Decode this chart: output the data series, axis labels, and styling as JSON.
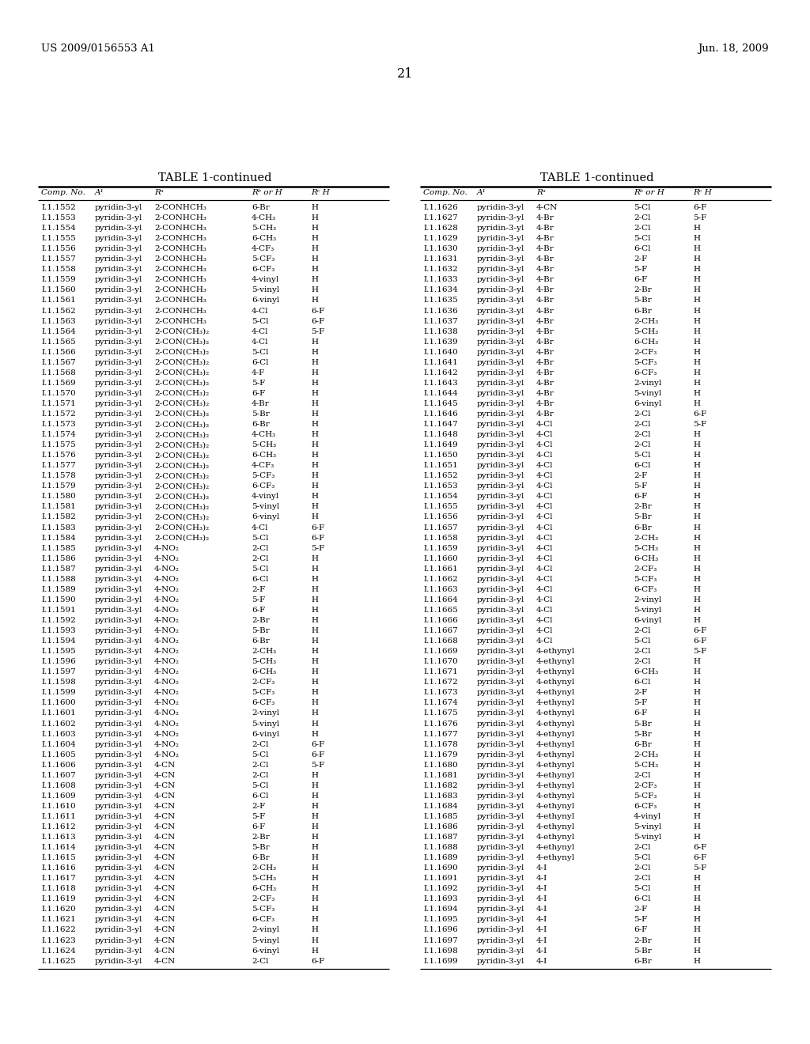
{
  "header_left": "US 2009/0156553 A1",
  "header_right": "Jun. 18, 2009",
  "page_number": "21",
  "table_title": "TABLE 1-continued",
  "col_headers": [
    "Comp. No.",
    "A¹",
    "Rᵃ",
    "Rᵇ or H",
    "Rᶜ H"
  ],
  "left_rows": [
    [
      "I.1.1552",
      "pyridin-3-yl",
      "2-CONHCH₃",
      "6-Br",
      "H"
    ],
    [
      "I.1.1553",
      "pyridin-3-yl",
      "2-CONHCH₃",
      "4-CH₃",
      "H"
    ],
    [
      "I.1.1554",
      "pyridin-3-yl",
      "2-CONHCH₃",
      "5-CH₃",
      "H"
    ],
    [
      "I.1.1555",
      "pyridin-3-yl",
      "2-CONHCH₃",
      "6-CH₃",
      "H"
    ],
    [
      "I.1.1556",
      "pyridin-3-yl",
      "2-CONHCH₃",
      "4-CF₃",
      "H"
    ],
    [
      "I.1.1557",
      "pyridin-3-yl",
      "2-CONHCH₃",
      "5-CF₃",
      "H"
    ],
    [
      "I.1.1558",
      "pyridin-3-yl",
      "2-CONHCH₃",
      "6-CF₃",
      "H"
    ],
    [
      "I.1.1559",
      "pyridin-3-yl",
      "2-CONHCH₃",
      "4-vinyl",
      "H"
    ],
    [
      "I.1.1560",
      "pyridin-3-yl",
      "2-CONHCH₃",
      "5-vinyl",
      "H"
    ],
    [
      "I.1.1561",
      "pyridin-3-yl",
      "2-CONHCH₃",
      "6-vinyl",
      "H"
    ],
    [
      "I.1.1562",
      "pyridin-3-yl",
      "2-CONHCH₃",
      "4-Cl",
      "6-F"
    ],
    [
      "I.1.1563",
      "pyridin-3-yl",
      "2-CONHCH₃",
      "5-Cl",
      "6-F"
    ],
    [
      "I.1.1564",
      "pyridin-3-yl",
      "2-CON(CH₃)₂",
      "4-Cl",
      "5-F"
    ],
    [
      "I.1.1565",
      "pyridin-3-yl",
      "2-CON(CH₃)₂",
      "4-Cl",
      "H"
    ],
    [
      "I.1.1566",
      "pyridin-3-yl",
      "2-CON(CH₃)₂",
      "5-Cl",
      "H"
    ],
    [
      "I.1.1567",
      "pyridin-3-yl",
      "2-CON(CH₃)₂",
      "6-Cl",
      "H"
    ],
    [
      "I.1.1568",
      "pyridin-3-yl",
      "2-CON(CH₃)₂",
      "4-F",
      "H"
    ],
    [
      "I.1.1569",
      "pyridin-3-yl",
      "2-CON(CH₃)₂",
      "5-F",
      "H"
    ],
    [
      "I.1.1570",
      "pyridin-3-yl",
      "2-CON(CH₃)₂",
      "6-F",
      "H"
    ],
    [
      "I.1.1571",
      "pyridin-3-yl",
      "2-CON(CH₃)₂",
      "4-Br",
      "H"
    ],
    [
      "I.1.1572",
      "pyridin-3-yl",
      "2-CON(CH₃)₂",
      "5-Br",
      "H"
    ],
    [
      "I.1.1573",
      "pyridin-3-yl",
      "2-CON(CH₃)₂",
      "6-Br",
      "H"
    ],
    [
      "I.1.1574",
      "pyridin-3-yl",
      "2-CON(CH₃)₂",
      "4-CH₃",
      "H"
    ],
    [
      "I.1.1575",
      "pyridin-3-yl",
      "2-CON(CH₃)₂",
      "5-CH₃",
      "H"
    ],
    [
      "I.1.1576",
      "pyridin-3-yl",
      "2-CON(CH₃)₂",
      "6-CH₃",
      "H"
    ],
    [
      "I.1.1577",
      "pyridin-3-yl",
      "2-CON(CH₃)₂",
      "4-CF₃",
      "H"
    ],
    [
      "I.1.1578",
      "pyridin-3-yl",
      "2-CON(CH₃)₂",
      "5-CF₃",
      "H"
    ],
    [
      "I.1.1579",
      "pyridin-3-yl",
      "2-CON(CH₃)₂",
      "6-CF₃",
      "H"
    ],
    [
      "I.1.1580",
      "pyridin-3-yl",
      "2-CON(CH₃)₂",
      "4-vinyl",
      "H"
    ],
    [
      "I.1.1581",
      "pyridin-3-yl",
      "2-CON(CH₃)₂",
      "5-vinyl",
      "H"
    ],
    [
      "I.1.1582",
      "pyridin-3-yl",
      "2-CON(CH₃)₂",
      "6-vinyl",
      "H"
    ],
    [
      "I.1.1583",
      "pyridin-3-yl",
      "2-CON(CH₃)₂",
      "4-Cl",
      "6-F"
    ],
    [
      "I.1.1584",
      "pyridin-3-yl",
      "2-CON(CH₃)₂",
      "5-Cl",
      "6-F"
    ],
    [
      "I.1.1585",
      "pyridin-3-yl",
      "4-NO₂",
      "2-Cl",
      "5-F"
    ],
    [
      "I.1.1586",
      "pyridin-3-yl",
      "4-NO₂",
      "2-Cl",
      "H"
    ],
    [
      "I.1.1587",
      "pyridin-3-yl",
      "4-NO₂",
      "5-Cl",
      "H"
    ],
    [
      "I.1.1588",
      "pyridin-3-yl",
      "4-NO₂",
      "6-Cl",
      "H"
    ],
    [
      "I.1.1589",
      "pyridin-3-yl",
      "4-NO₂",
      "2-F",
      "H"
    ],
    [
      "I.1.1590",
      "pyridin-3-yl",
      "4-NO₂",
      "5-F",
      "H"
    ],
    [
      "I.1.1591",
      "pyridin-3-yl",
      "4-NO₂",
      "6-F",
      "H"
    ],
    [
      "I.1.1592",
      "pyridin-3-yl",
      "4-NO₂",
      "2-Br",
      "H"
    ],
    [
      "I.1.1593",
      "pyridin-3-yl",
      "4-NO₂",
      "5-Br",
      "H"
    ],
    [
      "I.1.1594",
      "pyridin-3-yl",
      "4-NO₂",
      "6-Br",
      "H"
    ],
    [
      "I.1.1595",
      "pyridin-3-yl",
      "4-NO₂",
      "2-CH₃",
      "H"
    ],
    [
      "I.1.1596",
      "pyridin-3-yl",
      "4-NO₂",
      "5-CH₃",
      "H"
    ],
    [
      "I.1.1597",
      "pyridin-3-yl",
      "4-NO₂",
      "6-CH₃",
      "H"
    ],
    [
      "I.1.1598",
      "pyridin-3-yl",
      "4-NO₂",
      "2-CF₃",
      "H"
    ],
    [
      "I.1.1599",
      "pyridin-3-yl",
      "4-NO₂",
      "5-CF₃",
      "H"
    ],
    [
      "I.1.1600",
      "pyridin-3-yl",
      "4-NO₂",
      "6-CF₃",
      "H"
    ],
    [
      "I.1.1601",
      "pyridin-3-yl",
      "4-NO₂",
      "2-vinyl",
      "H"
    ],
    [
      "I.1.1602",
      "pyridin-3-yl",
      "4-NO₂",
      "5-vinyl",
      "H"
    ],
    [
      "I.1.1603",
      "pyridin-3-yl",
      "4-NO₂",
      "6-vinyl",
      "H"
    ],
    [
      "I.1.1604",
      "pyridin-3-yl",
      "4-NO₂",
      "2-Cl",
      "6-F"
    ],
    [
      "I.1.1605",
      "pyridin-3-yl",
      "4-NO₂",
      "5-Cl",
      "6-F"
    ],
    [
      "I.1.1606",
      "pyridin-3-yl",
      "4-CN",
      "2-Cl",
      "5-F"
    ],
    [
      "I.1.1607",
      "pyridin-3-yl",
      "4-CN",
      "2-Cl",
      "H"
    ],
    [
      "I.1.1608",
      "pyridin-3-yl",
      "4-CN",
      "5-Cl",
      "H"
    ],
    [
      "I.1.1609",
      "pyridin-3-yl",
      "4-CN",
      "6-Cl",
      "H"
    ],
    [
      "I.1.1610",
      "pyridin-3-yl",
      "4-CN",
      "2-F",
      "H"
    ],
    [
      "I.1.1611",
      "pyridin-3-yl",
      "4-CN",
      "5-F",
      "H"
    ],
    [
      "I.1.1612",
      "pyridin-3-yl",
      "4-CN",
      "6-F",
      "H"
    ],
    [
      "I.1.1613",
      "pyridin-3-yl",
      "4-CN",
      "2-Br",
      "H"
    ],
    [
      "I.1.1614",
      "pyridin-3-yl",
      "4-CN",
      "5-Br",
      "H"
    ],
    [
      "I.1.1615",
      "pyridin-3-yl",
      "4-CN",
      "6-Br",
      "H"
    ],
    [
      "I.1.1616",
      "pyridin-3-yl",
      "4-CN",
      "2-CH₃",
      "H"
    ],
    [
      "I.1.1617",
      "pyridin-3-yl",
      "4-CN",
      "5-CH₃",
      "H"
    ],
    [
      "I.1.1618",
      "pyridin-3-yl",
      "4-CN",
      "6-CH₃",
      "H"
    ],
    [
      "I.1.1619",
      "pyridin-3-yl",
      "4-CN",
      "2-CF₃",
      "H"
    ],
    [
      "I.1.1620",
      "pyridin-3-yl",
      "4-CN",
      "5-CF₃",
      "H"
    ],
    [
      "I.1.1621",
      "pyridin-3-yl",
      "4-CN",
      "6-CF₃",
      "H"
    ],
    [
      "I.1.1622",
      "pyridin-3-yl",
      "4-CN",
      "2-vinyl",
      "H"
    ],
    [
      "I.1.1623",
      "pyridin-3-yl",
      "4-CN",
      "5-vinyl",
      "H"
    ],
    [
      "I.1.1624",
      "pyridin-3-yl",
      "4-CN",
      "6-vinyl",
      "H"
    ],
    [
      "I.1.1625",
      "pyridin-3-yl",
      "4-CN",
      "2-Cl",
      "6-F"
    ]
  ],
  "right_rows": [
    [
      "I.1.1626",
      "pyridin-3-yl",
      "4-CN",
      "5-Cl",
      "6-F"
    ],
    [
      "I.1.1627",
      "pyridin-3-yl",
      "4-Br",
      "2-Cl",
      "5-F"
    ],
    [
      "I.1.1628",
      "pyridin-3-yl",
      "4-Br",
      "2-Cl",
      "H"
    ],
    [
      "I.1.1629",
      "pyridin-3-yl",
      "4-Br",
      "5-Cl",
      "H"
    ],
    [
      "I.1.1630",
      "pyridin-3-yl",
      "4-Br",
      "6-Cl",
      "H"
    ],
    [
      "I.1.1631",
      "pyridin-3-yl",
      "4-Br",
      "2-F",
      "H"
    ],
    [
      "I.1.1632",
      "pyridin-3-yl",
      "4-Br",
      "5-F",
      "H"
    ],
    [
      "I.1.1633",
      "pyridin-3-yl",
      "4-Br",
      "6-F",
      "H"
    ],
    [
      "I.1.1634",
      "pyridin-3-yl",
      "4-Br",
      "2-Br",
      "H"
    ],
    [
      "I.1.1635",
      "pyridin-3-yl",
      "4-Br",
      "5-Br",
      "H"
    ],
    [
      "I.1.1636",
      "pyridin-3-yl",
      "4-Br",
      "6-Br",
      "H"
    ],
    [
      "I.1.1637",
      "pyridin-3-yl",
      "4-Br",
      "2-CH₃",
      "H"
    ],
    [
      "I.1.1638",
      "pyridin-3-yl",
      "4-Br",
      "5-CH₃",
      "H"
    ],
    [
      "I.1.1639",
      "pyridin-3-yl",
      "4-Br",
      "6-CH₃",
      "H"
    ],
    [
      "I.1.1640",
      "pyridin-3-yl",
      "4-Br",
      "2-CF₃",
      "H"
    ],
    [
      "I.1.1641",
      "pyridin-3-yl",
      "4-Br",
      "5-CF₃",
      "H"
    ],
    [
      "I.1.1642",
      "pyridin-3-yl",
      "4-Br",
      "6-CF₃",
      "H"
    ],
    [
      "I.1.1643",
      "pyridin-3-yl",
      "4-Br",
      "2-vinyl",
      "H"
    ],
    [
      "I.1.1644",
      "pyridin-3-yl",
      "4-Br",
      "5-vinyl",
      "H"
    ],
    [
      "I.1.1645",
      "pyridin-3-yl",
      "4-Br",
      "6-vinyl",
      "H"
    ],
    [
      "I.1.1646",
      "pyridin-3-yl",
      "4-Br",
      "2-Cl",
      "6-F"
    ],
    [
      "I.1.1647",
      "pyridin-3-yl",
      "4-Cl",
      "2-Cl",
      "5-F"
    ],
    [
      "I.1.1648",
      "pyridin-3-yl",
      "4-Cl",
      "2-Cl",
      "H"
    ],
    [
      "I.1.1649",
      "pyridin-3-yl",
      "4-Cl",
      "2-Cl",
      "H"
    ],
    [
      "I.1.1650",
      "pyridin-3-yl",
      "4-Cl",
      "5-Cl",
      "H"
    ],
    [
      "I.1.1651",
      "pyridin-3-yl",
      "4-Cl",
      "6-Cl",
      "H"
    ],
    [
      "I.1.1652",
      "pyridin-3-yl",
      "4-Cl",
      "2-F",
      "H"
    ],
    [
      "I.1.1653",
      "pyridin-3-yl",
      "4-Cl",
      "5-F",
      "H"
    ],
    [
      "I.1.1654",
      "pyridin-3-yl",
      "4-Cl",
      "6-F",
      "H"
    ],
    [
      "I.1.1655",
      "pyridin-3-yl",
      "4-Cl",
      "2-Br",
      "H"
    ],
    [
      "I.1.1656",
      "pyridin-3-yl",
      "4-Cl",
      "5-Br",
      "H"
    ],
    [
      "I.1.1657",
      "pyridin-3-yl",
      "4-Cl",
      "6-Br",
      "H"
    ],
    [
      "I.1.1658",
      "pyridin-3-yl",
      "4-Cl",
      "2-CH₃",
      "H"
    ],
    [
      "I.1.1659",
      "pyridin-3-yl",
      "4-Cl",
      "5-CH₃",
      "H"
    ],
    [
      "I.1.1660",
      "pyridin-3-yl",
      "4-Cl",
      "6-CH₃",
      "H"
    ],
    [
      "I.1.1661",
      "pyridin-3-yl",
      "4-Cl",
      "2-CF₃",
      "H"
    ],
    [
      "I.1.1662",
      "pyridin-3-yl",
      "4-Cl",
      "5-CF₃",
      "H"
    ],
    [
      "I.1.1663",
      "pyridin-3-yl",
      "4-Cl",
      "6-CF₃",
      "H"
    ],
    [
      "I.1.1664",
      "pyridin-3-yl",
      "4-Cl",
      "2-vinyl",
      "H"
    ],
    [
      "I.1.1665",
      "pyridin-3-yl",
      "4-Cl",
      "5-vinyl",
      "H"
    ],
    [
      "I.1.1666",
      "pyridin-3-yl",
      "4-Cl",
      "6-vinyl",
      "H"
    ],
    [
      "I.1.1667",
      "pyridin-3-yl",
      "4-Cl",
      "2-Cl",
      "6-F"
    ],
    [
      "I.1.1668",
      "pyridin-3-yl",
      "4-Cl",
      "5-Cl",
      "6-F"
    ],
    [
      "I.1.1669",
      "pyridin-3-yl",
      "4-ethynyl",
      "2-Cl",
      "5-F"
    ],
    [
      "I.1.1670",
      "pyridin-3-yl",
      "4-ethynyl",
      "2-Cl",
      "H"
    ],
    [
      "I.1.1671",
      "pyridin-3-yl",
      "4-ethynyl",
      "6-CH₃",
      "H"
    ],
    [
      "I.1.1672",
      "pyridin-3-yl",
      "4-ethynyl",
      "6-Cl",
      "H"
    ],
    [
      "I.1.1673",
      "pyridin-3-yl",
      "4-ethynyl",
      "2-F",
      "H"
    ],
    [
      "I.1.1674",
      "pyridin-3-yl",
      "4-ethynyl",
      "5-F",
      "H"
    ],
    [
      "I.1.1675",
      "pyridin-3-yl",
      "4-ethynyl",
      "6-F",
      "H"
    ],
    [
      "I.1.1676",
      "pyridin-3-yl",
      "4-ethynyl",
      "5-Br",
      "H"
    ],
    [
      "I.1.1677",
      "pyridin-3-yl",
      "4-ethynyl",
      "5-Br",
      "H"
    ],
    [
      "I.1.1678",
      "pyridin-3-yl",
      "4-ethynyl",
      "6-Br",
      "H"
    ],
    [
      "I.1.1679",
      "pyridin-3-yl",
      "4-ethynyl",
      "2-CH₃",
      "H"
    ],
    [
      "I.1.1680",
      "pyridin-3-yl",
      "4-ethynyl",
      "5-CH₃",
      "H"
    ],
    [
      "I.1.1681",
      "pyridin-3-yl",
      "4-ethynyl",
      "2-Cl",
      "H"
    ],
    [
      "I.1.1682",
      "pyridin-3-yl",
      "4-ethynyl",
      "2-CF₃",
      "H"
    ],
    [
      "I.1.1683",
      "pyridin-3-yl",
      "4-ethynyl",
      "5-CF₃",
      "H"
    ],
    [
      "I.1.1684",
      "pyridin-3-yl",
      "4-ethynyl",
      "6-CF₃",
      "H"
    ],
    [
      "I.1.1685",
      "pyridin-3-yl",
      "4-ethynyl",
      "4-vinyl",
      "H"
    ],
    [
      "I.1.1686",
      "pyridin-3-yl",
      "4-ethynyl",
      "5-vinyl",
      "H"
    ],
    [
      "I.1.1687",
      "pyridin-3-yl",
      "4-ethynyl",
      "5-vinyl",
      "H"
    ],
    [
      "I.1.1688",
      "pyridin-3-yl",
      "4-ethynyl",
      "2-Cl",
      "6-F"
    ],
    [
      "I.1.1689",
      "pyridin-3-yl",
      "4-ethynyl",
      "5-Cl",
      "6-F"
    ],
    [
      "I.1.1690",
      "pyridin-3-yl",
      "4-I",
      "2-Cl",
      "5-F"
    ],
    [
      "I.1.1691",
      "pyridin-3-yl",
      "4-I",
      "2-Cl",
      "H"
    ],
    [
      "I.1.1692",
      "pyridin-3-yl",
      "4-I",
      "5-Cl",
      "H"
    ],
    [
      "I.1.1693",
      "pyridin-3-yl",
      "4-I",
      "6-Cl",
      "H"
    ],
    [
      "I.1.1694",
      "pyridin-3-yl",
      "4-I",
      "2-F",
      "H"
    ],
    [
      "I.1.1695",
      "pyridin-3-yl",
      "4-I",
      "5-F",
      "H"
    ],
    [
      "I.1.1696",
      "pyridin-3-yl",
      "4-I",
      "6-F",
      "H"
    ],
    [
      "I.1.1697",
      "pyridin-3-yl",
      "4-I",
      "2-Br",
      "H"
    ],
    [
      "I.1.1698",
      "pyridin-3-yl",
      "4-I",
      "5-Br",
      "H"
    ],
    [
      "I.1.1699",
      "pyridin-3-yl",
      "4-I",
      "6-Br",
      "H"
    ]
  ],
  "bg_color": "#ffffff",
  "text_color": "#000000"
}
